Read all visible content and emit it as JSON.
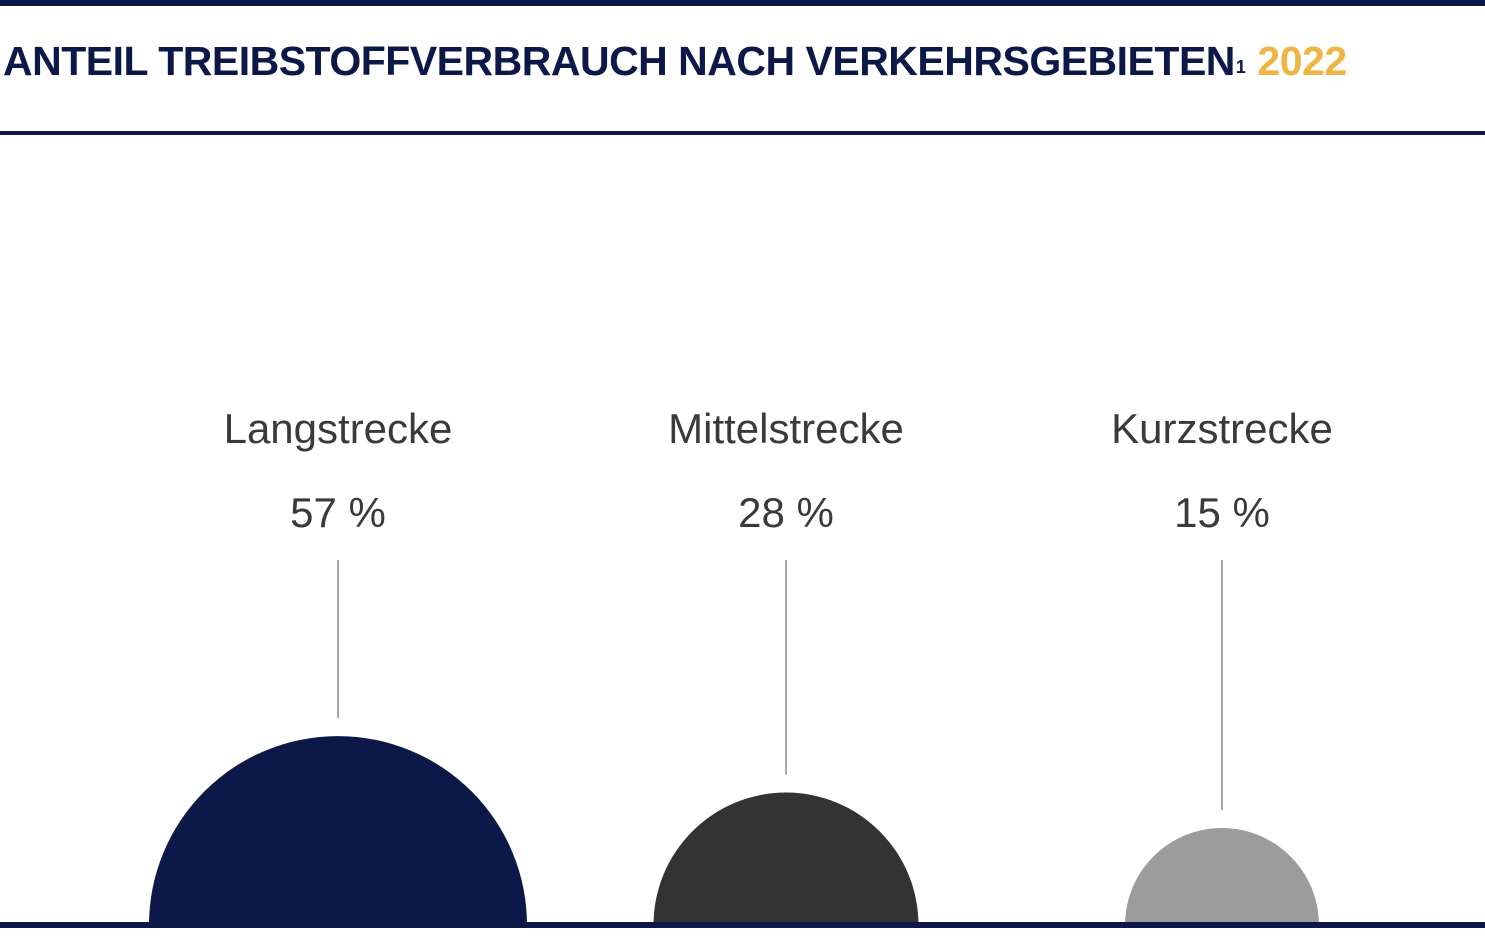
{
  "header": {
    "title": "ANTEIL TREIBSTOFFVERBRAUCH NACH VERKEHRSGEBIETEN",
    "footnote_mark": "1",
    "year": "2022"
  },
  "colors": {
    "navy": "#0c1848",
    "accent_year": "#f0b446",
    "dark_gray": "#333333",
    "light_gray": "#9c9c9c",
    "text": "#3a3a3a",
    "leader_line": "#8a8a8a"
  },
  "chart_data": {
    "type": "bubble",
    "title": "ANTEIL TREIBSTOFFVERBRAUCH NACH VERKEHRSGEBIETEN¹ 2022",
    "unit": "%",
    "categories": [
      "Langstrecke",
      "Mittelstrecke",
      "Kurzstrecke"
    ],
    "values": [
      57,
      28,
      15
    ],
    "value_labels": [
      "57 %",
      "28 %",
      "15 %"
    ],
    "series_colors": [
      "#0c1848",
      "#333333",
      "#9c9c9c"
    ],
    "legend": "none",
    "grid": false
  }
}
